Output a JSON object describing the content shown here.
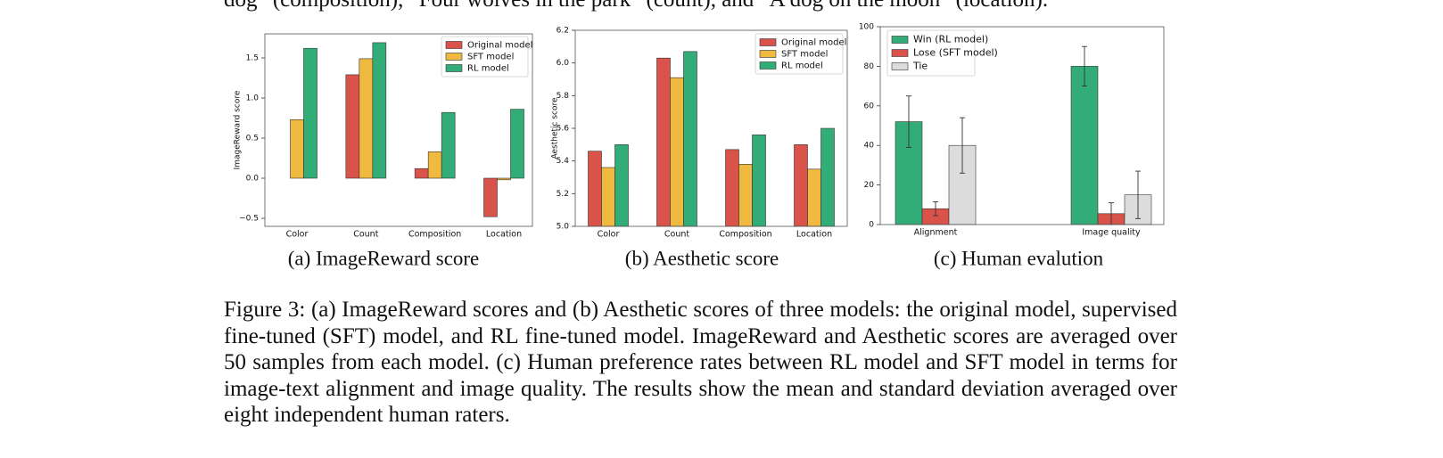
{
  "intro_text": "dog” (composition), “Four wolves in the park” (count), and “A dog on the moon” (location).",
  "chart_data": [
    {
      "type": "bar",
      "caption": "(a) ImageReward score",
      "y_label": "ImageReward score",
      "categories": [
        "Color",
        "Count",
        "Composition",
        "Location"
      ],
      "series": [
        {
          "name": "Original model",
          "color": "#d9534a",
          "values": [
            0.0,
            1.29,
            0.12,
            -0.48
          ]
        },
        {
          "name": "SFT model",
          "color": "#f0b940",
          "values": [
            0.73,
            1.49,
            0.33,
            -0.02
          ]
        },
        {
          "name": "RL model",
          "color": "#33ad78",
          "values": [
            1.62,
            1.69,
            0.82,
            0.86
          ]
        }
      ],
      "ylim": [
        -0.6,
        1.8
      ],
      "yticks": [
        {
          "value": -0.5,
          "label": "−0.5"
        },
        {
          "value": 0,
          "label": "0.0"
        },
        0.5,
        {
          "value": 1,
          "label": "1.0"
        },
        1.5
      ],
      "legend": "upper right"
    },
    {
      "type": "bar",
      "caption": "(b) Aesthetic score",
      "y_label": "Aesthetic score",
      "categories": [
        "Color",
        "Count",
        "Composition",
        "Location"
      ],
      "series": [
        {
          "name": "Original model",
          "color": "#d9534a",
          "values": [
            5.46,
            6.03,
            5.47,
            5.5
          ]
        },
        {
          "name": "SFT model",
          "color": "#f0b940",
          "values": [
            5.36,
            5.91,
            5.38,
            5.35
          ]
        },
        {
          "name": "RL model",
          "color": "#33ad78",
          "values": [
            5.5,
            6.07,
            5.56,
            5.6
          ]
        }
      ],
      "ylim": [
        5.0,
        6.2
      ],
      "yticks": [
        {
          "value": 5,
          "label": "5.0"
        },
        5.2,
        5.4,
        5.6,
        5.8,
        {
          "value": 6,
          "label": "6.0"
        },
        6.2
      ],
      "legend": "upper right"
    },
    {
      "type": "bar",
      "caption": "(c) Human evalution",
      "categories": [
        "Alignment",
        "Image quality"
      ],
      "series": [
        {
          "name": "Win (RL model)",
          "color": "#33ad78",
          "values": [
            52,
            80
          ],
          "errors": [
            13,
            10
          ]
        },
        {
          "name": "Lose (SFT model)",
          "color": "#d9534a",
          "values": [
            8,
            5.5
          ],
          "errors": [
            3.5,
            5.5
          ]
        },
        {
          "name": "Tie",
          "color": "#dcdcdc",
          "values": [
            40,
            15
          ],
          "errors": [
            14,
            12
          ]
        }
      ],
      "ylim": [
        0,
        100
      ],
      "yticks": [
        0,
        20,
        40,
        60,
        80,
        100
      ],
      "legend": "upper left"
    }
  ],
  "caption": "Figure 3: (a) ImageReward scores and (b) Aesthetic scores of three models: the original model, supervised fine-tuned (SFT) model, and RL fine-tuned model. ImageReward and Aesthetic scores are averaged over 50 samples from each model. (c) Human preference rates between RL model and SFT model in terms for image-text alignment and image quality. The results show the mean and standard deviation averaged over eight independent human raters."
}
